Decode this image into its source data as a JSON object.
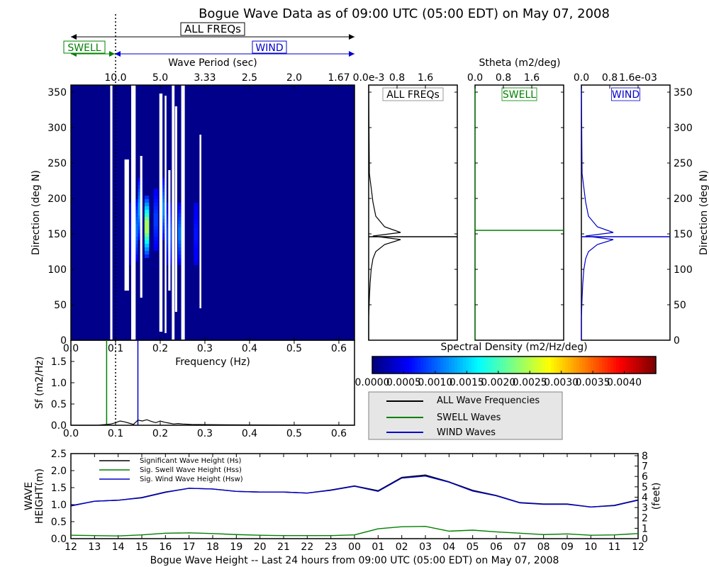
{
  "title": "Bogue Wave Data as of 09:00 UTC (05:00 EDT) on May 07, 2008",
  "band_labels": {
    "all": "ALL FREQs",
    "swell": "SWELL",
    "wind": "WIND"
  },
  "colors": {
    "all": "#000000",
    "swell": "#008000",
    "wind": "#0000cc",
    "background_spectrum": "#00008f"
  },
  "chart_data": [
    {
      "id": "direction-spectrum",
      "type": "heatmap",
      "xlabel": "Frequency (Hz)",
      "ylabel": "Direction (deg N)",
      "top_axis_label": "Wave Period (sec)",
      "xlim": [
        0,
        0.635
      ],
      "ylim": [
        0,
        360
      ],
      "xticks": [
        "0.0",
        "0.1",
        "0.2",
        "0.3",
        "0.4",
        "0.5",
        "0.6"
      ],
      "xtick_values": [
        0,
        0.1,
        0.2,
        0.3,
        0.4,
        0.5,
        0.6
      ],
      "yticks": [
        "0",
        "50",
        "100",
        "150",
        "200",
        "250",
        "300",
        "350"
      ],
      "ytick_values": [
        0,
        50,
        100,
        150,
        200,
        250,
        300,
        350
      ],
      "top_ticks": [
        "10.0",
        "5.0",
        "3.33",
        "2.5",
        "2.0",
        "1.67"
      ],
      "top_tick_values": [
        0.1,
        0.2,
        0.3,
        0.4,
        0.5,
        0.6
      ],
      "cell_width_hz": 0.01,
      "missing_columns": [
        {
          "f0": 0.088,
          "f1": 0.093,
          "low": 0,
          "high": 360,
          "note": "thin gap"
        },
        {
          "f0": 0.135,
          "f1": 0.145,
          "low": 0,
          "high": 360
        },
        {
          "f0": 0.155,
          "f1": 0.16,
          "low": 60,
          "high": 260
        },
        {
          "f0": 0.21,
          "f1": 0.214,
          "low": 10,
          "high": 345
        },
        {
          "f0": 0.198,
          "f1": 0.205,
          "low": 12,
          "high": 348
        },
        {
          "f0": 0.226,
          "f1": 0.232,
          "low": 0,
          "high": 360
        },
        {
          "f0": 0.247,
          "f1": 0.255,
          "low": 0,
          "high": 360
        },
        {
          "f0": 0.288,
          "f1": 0.292,
          "low": 45,
          "high": 290
        },
        {
          "f0": 0.233,
          "f1": 0.238,
          "low": 40,
          "high": 330
        },
        {
          "f0": 0.12,
          "f1": 0.13,
          "low": 70,
          "high": 255
        },
        {
          "f0": 0.218,
          "f1": 0.223,
          "low": 70,
          "high": 240
        }
      ],
      "hotspots": [
        {
          "freq": 0.17,
          "dir": 160,
          "value": 0.0022
        },
        {
          "freq": 0.155,
          "dir": 185,
          "value": 0.0009
        },
        {
          "freq": 0.145,
          "dir": 155,
          "value": 0.0007
        },
        {
          "freq": 0.205,
          "dir": 185,
          "value": 0.0008
        },
        {
          "freq": 0.245,
          "dir": 150,
          "value": 0.0007
        },
        {
          "freq": 0.22,
          "dir": 150,
          "value": 0.0005
        },
        {
          "freq": 0.19,
          "dir": 170,
          "value": 0.0004
        },
        {
          "freq": 0.28,
          "dir": 150,
          "value": 0.0002
        },
        {
          "freq": 0.13,
          "dir": 150,
          "value": 0.0002
        }
      ],
      "vertical_marker": 0.1
    },
    {
      "id": "colorbar",
      "type": "heatmap",
      "title": "Spectral Density (m2/Hz/deg)",
      "range": [
        0,
        0.0045
      ],
      "ticks": [
        "0.0000",
        "0.0005",
        "0.0010",
        "0.0015",
        "0.0020",
        "0.0025",
        "0.0030",
        "0.0035",
        "0.0040"
      ],
      "tick_values": [
        0,
        0.0005,
        0.001,
        0.0015,
        0.002,
        0.0025,
        0.003,
        0.0035,
        0.004
      ]
    },
    {
      "id": "stheta-panels",
      "type": "line",
      "title": "Stheta (m2/deg)",
      "ylabel": "Direction (deg N)",
      "ylim": [
        0,
        360
      ],
      "yticks": [
        "0",
        "50",
        "100",
        "150",
        "200",
        "250",
        "300",
        "350"
      ],
      "panels": [
        {
          "name": "ALL FREQs",
          "color": "#000000",
          "xlim": [
            0,
            0.0025
          ],
          "xticks": [
            "0.0e-3",
            "0.8",
            "1.6"
          ],
          "xtick_values": [
            0,
            0.0008,
            0.0016
          ],
          "dir": [
            0,
            30,
            60,
            80,
            100,
            115,
            125,
            135,
            142,
            147,
            152,
            160,
            175,
            195,
            215,
            235,
            360
          ],
          "val": [
            0,
            0,
            2e-05,
            4e-05,
            7e-05,
            0.00012,
            0.0002,
            0.00045,
            0.0009,
            0.00012,
            0.0009,
            0.00045,
            0.0002,
            0.00012,
            7e-05,
            2e-05,
            0
          ],
          "line_dir": 146
        },
        {
          "name": "SWELL",
          "color": "#008000",
          "xlim": [
            0,
            0.0025
          ],
          "xticks": [
            "0.0",
            "0.8",
            "1.6"
          ],
          "xtick_values": [
            0,
            0.0008,
            0.0016
          ],
          "dir": [
            0,
            360
          ],
          "val": [
            0,
            0
          ],
          "line_dir": 155
        },
        {
          "name": "WIND",
          "color": "#0000cc",
          "xlim": [
            0,
            0.0025
          ],
          "xticks": [
            "0.0",
            "0.8",
            "1.6e-03"
          ],
          "xtick_values": [
            0,
            0.0008,
            0.0016
          ],
          "dir": [
            0,
            30,
            60,
            80,
            100,
            115,
            125,
            135,
            142,
            147,
            152,
            160,
            175,
            195,
            215,
            235,
            360
          ],
          "val": [
            0,
            0,
            2e-05,
            4e-05,
            7e-05,
            0.00012,
            0.0002,
            0.00045,
            0.0009,
            0.00012,
            0.0009,
            0.00045,
            0.0002,
            0.00012,
            7e-05,
            2e-05,
            0
          ],
          "line_dir": 146
        }
      ]
    },
    {
      "id": "frequency-spectrum",
      "type": "line",
      "ylabel": "Sf (m2/Hz)",
      "xlim": [
        0,
        0.635
      ],
      "ylim": [
        0,
        2.0
      ],
      "xticks": [
        "0.0",
        "0.1",
        "0.2",
        "0.3",
        "0.4",
        "0.5",
        "0.6"
      ],
      "xtick_values": [
        0,
        0.1,
        0.2,
        0.3,
        0.4,
        0.5,
        0.6
      ],
      "yticks": [
        "0.0",
        "0.5",
        "1.0",
        "1.5"
      ],
      "ytick_values": [
        0,
        0.5,
        1.0,
        1.5
      ],
      "freq": [
        0.0,
        0.06,
        0.07,
        0.08,
        0.09,
        0.1,
        0.105,
        0.11,
        0.12,
        0.13,
        0.14,
        0.15,
        0.16,
        0.17,
        0.18,
        0.19,
        0.2,
        0.21,
        0.22,
        0.23,
        0.24,
        0.25,
        0.27,
        0.3,
        0.35,
        0.4,
        0.5,
        0.635
      ],
      "sf": [
        0,
        0,
        0.01,
        0.02,
        0.03,
        0.06,
        0.08,
        0.1,
        0.08,
        0.05,
        0.02,
        0.12,
        0.1,
        0.13,
        0.09,
        0.06,
        0.1,
        0.07,
        0.05,
        0.03,
        0.04,
        0.03,
        0.02,
        0.015,
        0.01,
        0.008,
        0.005,
        0.002
      ],
      "swell_cutoff": 0.08,
      "wind_cutoff": 0.15,
      "vertical_marker": 0.1
    },
    {
      "id": "wave-height-history",
      "type": "line",
      "xlabel": "Bogue Wave Height -- Last 24 hours from 09:00 UTC (05:00 EDT) on May 07, 2008",
      "ylabel": "WAVE HEIGHT(m)",
      "ylabel_right": "(feet)",
      "ylim": [
        0,
        2.5
      ],
      "yticks": [
        "0.0",
        "0.5",
        "1.0",
        "1.5",
        "2.0",
        "2.5"
      ],
      "ytick_values": [
        0,
        0.5,
        1.0,
        1.5,
        2.0,
        2.5
      ],
      "yticks_right": [
        "0",
        "1",
        "2",
        "3",
        "4",
        "5",
        "6",
        "7",
        "8"
      ],
      "categories": [
        "12",
        "13",
        "14",
        "15",
        "16",
        "17",
        "18",
        "19",
        "20",
        "21",
        "22",
        "23",
        "00",
        "01",
        "02",
        "03",
        "04",
        "05",
        "06",
        "07",
        "08",
        "09",
        "10",
        "11",
        "12"
      ],
      "series": [
        {
          "name": "Significant Wave Height (Hs)",
          "color": "#000000",
          "values": [
            0.97,
            1.1,
            1.13,
            1.21,
            1.37,
            1.48,
            1.46,
            1.39,
            1.37,
            1.37,
            1.34,
            1.43,
            1.55,
            1.41,
            1.8,
            1.87,
            1.67,
            1.42,
            1.27,
            1.06,
            1.02,
            1.02,
            0.93,
            0.98,
            1.14
          ]
        },
        {
          "name": "Sig. Swell Wave Height (Hss)",
          "color": "#008000",
          "values": [
            0.1,
            0.09,
            0.08,
            0.11,
            0.16,
            0.17,
            0.15,
            0.12,
            0.1,
            0.09,
            0.09,
            0.09,
            0.11,
            0.29,
            0.35,
            0.36,
            0.22,
            0.25,
            0.2,
            0.16,
            0.12,
            0.14,
            0.1,
            0.11,
            0.15
          ]
        },
        {
          "name": "Sig. Wind Wave Height (Hsw)",
          "color": "#0000cc",
          "values": [
            0.96,
            1.1,
            1.13,
            1.2,
            1.36,
            1.48,
            1.46,
            1.39,
            1.37,
            1.37,
            1.34,
            1.42,
            1.54,
            1.39,
            1.78,
            1.84,
            1.66,
            1.4,
            1.26,
            1.05,
            1.01,
            1.01,
            0.93,
            0.97,
            1.13
          ]
        }
      ]
    }
  ],
  "legend": {
    "items": [
      {
        "label": "ALL Wave Frequencies",
        "color": "#000000"
      },
      {
        "label": "SWELL Waves",
        "color": "#008000"
      },
      {
        "label": "WIND Waves",
        "color": "#0000cc"
      }
    ]
  }
}
